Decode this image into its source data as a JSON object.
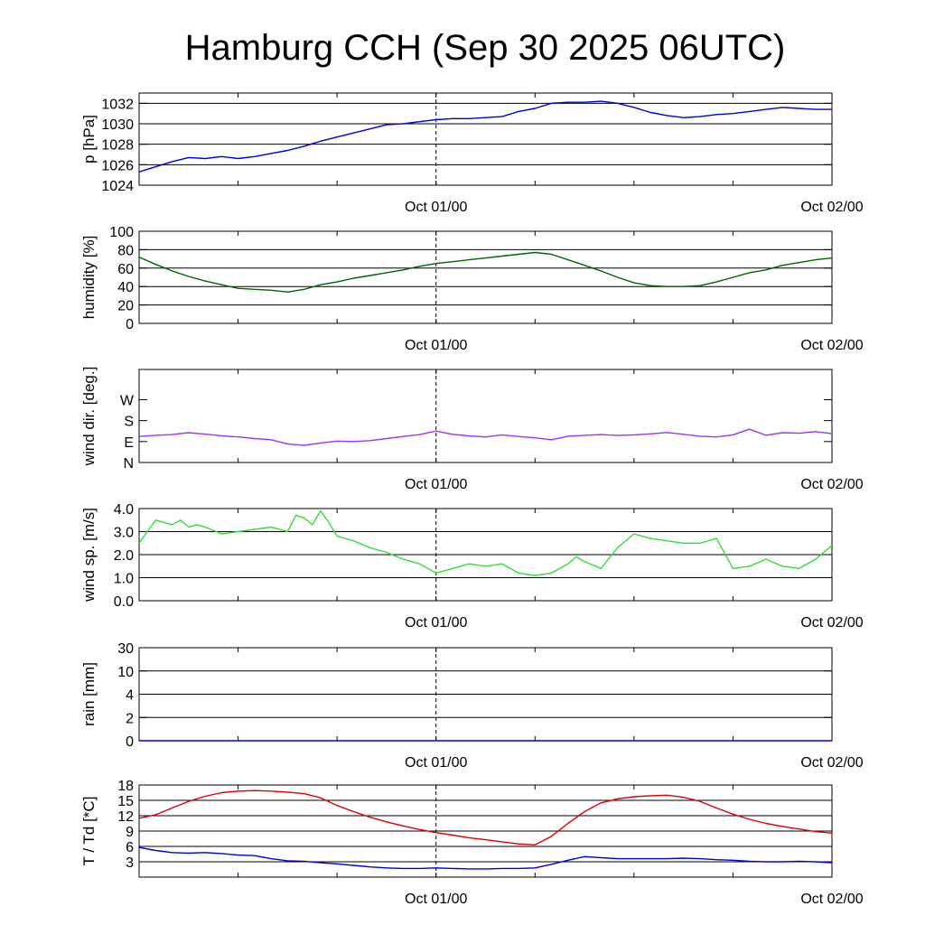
{
  "title": "Hamburg CCH (Sep 30 2025 06UTC)",
  "chart_data": [
    {
      "type": "line",
      "ylabel": "p [hPa]",
      "ylim": [
        1024,
        1033
      ],
      "yticks": [
        1024,
        1026,
        1028,
        1030,
        1032
      ],
      "ytick_labels": [
        "1024",
        "1026",
        "1028",
        "1030",
        "1032"
      ],
      "grid": true,
      "xlim": [
        0,
        42
      ],
      "xtick_labels": [
        {
          "x": 18,
          "label": "Oct 01/00"
        },
        {
          "x": 42,
          "label": "Oct 02/00"
        }
      ],
      "series": [
        {
          "color": "#0000dd",
          "x": [
            0,
            1,
            2,
            3,
            4,
            5,
            6,
            7,
            8,
            9,
            10,
            11,
            12,
            13,
            14,
            15,
            16,
            17,
            18,
            19,
            20,
            21,
            22,
            23,
            24,
            25,
            26,
            27,
            28,
            29,
            30,
            31,
            32,
            33,
            34,
            35,
            36,
            37,
            38,
            39,
            40,
            41,
            42
          ],
          "values": [
            1025.3,
            1025.8,
            1026.3,
            1026.7,
            1026.6,
            1026.8,
            1026.6,
            1026.8,
            1027.1,
            1027.4,
            1027.8,
            1028.3,
            1028.7,
            1029.1,
            1029.5,
            1029.9,
            1030.0,
            1030.2,
            1030.4,
            1030.5,
            1030.5,
            1030.6,
            1030.7,
            1031.2,
            1031.5,
            1032.0,
            1032.1,
            1032.1,
            1032.2,
            1032.0,
            1031.6,
            1031.1,
            1030.8,
            1030.6,
            1030.7,
            1030.9,
            1031.0,
            1031.2,
            1031.4,
            1031.6,
            1031.5,
            1031.4,
            1031.4
          ]
        }
      ]
    },
    {
      "type": "line",
      "ylabel": "humidity [%]",
      "ylim": [
        0,
        100
      ],
      "yticks": [
        0,
        20,
        40,
        60,
        80,
        100
      ],
      "ytick_labels": [
        "0",
        "20",
        "40",
        "60",
        "80",
        "100"
      ],
      "grid": true,
      "xlim": [
        0,
        42
      ],
      "xtick_labels": [
        {
          "x": 18,
          "label": "Oct 01/00"
        },
        {
          "x": 42,
          "label": "Oct 02/00"
        }
      ],
      "series": [
        {
          "color": "#006400",
          "x": [
            0,
            1,
            2,
            3,
            4,
            5,
            6,
            7,
            8,
            9,
            10,
            11,
            12,
            13,
            14,
            15,
            16,
            17,
            18,
            19,
            20,
            21,
            22,
            23,
            24,
            25,
            26,
            27,
            28,
            29,
            30,
            31,
            32,
            33,
            34,
            35,
            36,
            37,
            38,
            39,
            40,
            41,
            42
          ],
          "values": [
            72,
            64,
            57,
            51,
            46,
            42,
            38,
            37,
            36,
            34,
            37,
            42,
            45,
            49,
            52,
            55,
            58,
            62,
            65,
            67,
            69,
            71,
            73,
            75,
            77,
            75,
            69,
            63,
            57,
            50,
            44,
            41,
            40,
            40,
            41,
            45,
            50,
            55,
            58,
            63,
            66,
            69,
            71
          ]
        }
      ]
    },
    {
      "type": "line",
      "ylabel": "wind dir. [deg.]",
      "ylim": [
        0,
        400
      ],
      "yticks": [
        0,
        90,
        180,
        270
      ],
      "ytick_labels": [
        "N",
        "E",
        "S",
        "W"
      ],
      "grid": false,
      "xlim": [
        0,
        42
      ],
      "xtick_labels": [
        {
          "x": 18,
          "label": "Oct 01/00"
        },
        {
          "x": 42,
          "label": "Oct 02/00"
        }
      ],
      "series": [
        {
          "color": "#9933ff",
          "x": [
            0,
            1,
            2,
            3,
            4,
            5,
            6,
            7,
            8,
            9,
            10,
            11,
            12,
            13,
            14,
            15,
            16,
            17,
            18,
            19,
            20,
            21,
            22,
            23,
            24,
            25,
            26,
            27,
            28,
            29,
            30,
            31,
            32,
            33,
            34,
            35,
            36,
            37,
            38,
            39,
            40,
            41,
            42
          ],
          "values": [
            112,
            117,
            120,
            128,
            122,
            115,
            110,
            103,
            98,
            80,
            74,
            84,
            92,
            90,
            94,
            103,
            112,
            120,
            135,
            121,
            114,
            110,
            119,
            112,
            106,
            98,
            113,
            117,
            120,
            116,
            119,
            123,
            129,
            121,
            113,
            110,
            119,
            143,
            117,
            128,
            126,
            133,
            124
          ]
        }
      ]
    },
    {
      "type": "line",
      "ylabel": "wind sp. [m/s]",
      "ylim": [
        0,
        4
      ],
      "yticks": [
        0,
        1,
        2,
        3,
        4
      ],
      "ytick_labels": [
        "0.0",
        "1.0",
        "2.0",
        "3.0",
        "4.0"
      ],
      "grid": true,
      "xlim": [
        0,
        42
      ],
      "xtick_labels": [
        {
          "x": 18,
          "label": "Oct 01/00"
        },
        {
          "x": 42,
          "label": "Oct 02/00"
        }
      ],
      "series": [
        {
          "color": "#33dd33",
          "x": [
            0,
            0.5,
            1,
            1.5,
            2,
            2.5,
            3,
            3.5,
            4,
            5,
            6,
            7,
            8,
            9,
            9.5,
            10,
            10.5,
            11,
            11.5,
            12,
            13,
            14,
            15,
            16,
            17,
            18,
            19,
            20,
            21,
            22,
            23,
            24,
            25,
            26,
            26.5,
            27,
            28,
            29,
            30,
            31,
            32,
            33,
            34,
            35,
            36,
            37,
            38,
            39,
            40,
            41,
            42
          ],
          "values": [
            2.5,
            3.0,
            3.5,
            3.4,
            3.3,
            3.5,
            3.2,
            3.3,
            3.2,
            2.9,
            3.0,
            3.1,
            3.2,
            3.0,
            3.7,
            3.6,
            3.3,
            3.9,
            3.4,
            2.8,
            2.6,
            2.3,
            2.1,
            1.8,
            1.6,
            1.2,
            1.4,
            1.6,
            1.5,
            1.6,
            1.2,
            1.1,
            1.2,
            1.6,
            1.9,
            1.7,
            1.4,
            2.3,
            2.9,
            2.7,
            2.6,
            2.5,
            2.5,
            2.7,
            1.4,
            1.5,
            1.8,
            1.5,
            1.4,
            1.8,
            2.4
          ]
        }
      ]
    },
    {
      "type": "line",
      "ylabel": "rain [mm]",
      "ylim": [
        0,
        4
      ],
      "yticks": [
        0,
        1,
        2,
        3,
        4
      ],
      "ytick_labels": [
        "0",
        "2",
        "4",
        "10",
        "30"
      ],
      "grid": true,
      "xlim": [
        0,
        42
      ],
      "xtick_labels": [
        {
          "x": 18,
          "label": "Oct 01/00"
        },
        {
          "x": 42,
          "label": "Oct 02/00"
        }
      ],
      "series": [
        {
          "color": "#0000dd",
          "x": [
            0,
            42
          ],
          "values": [
            0,
            0
          ]
        }
      ]
    },
    {
      "type": "line",
      "ylabel": "T / Td [*C]",
      "ylim": [
        0,
        18
      ],
      "yticks": [
        3,
        6,
        9,
        12,
        15,
        18
      ],
      "ytick_labels": [
        "3",
        "6",
        "9",
        "12",
        "15",
        "18"
      ],
      "grid": true,
      "xlim": [
        0,
        42
      ],
      "xtick_labels": [
        {
          "x": 18,
          "label": "Oct 01/00"
        },
        {
          "x": 42,
          "label": "Oct 02/00"
        }
      ],
      "series": [
        {
          "color": "#dd0000",
          "x": [
            0,
            1,
            2,
            3,
            4,
            5,
            6,
            7,
            8,
            9,
            10,
            11,
            12,
            13,
            14,
            15,
            16,
            17,
            18,
            19,
            20,
            21,
            22,
            23,
            24,
            25,
            26,
            27,
            28,
            29,
            30,
            31,
            32,
            33,
            34,
            35,
            36,
            37,
            38,
            39,
            40,
            41,
            42
          ],
          "values": [
            11.5,
            12.2,
            13.5,
            14.8,
            15.8,
            16.5,
            16.8,
            16.9,
            16.8,
            16.6,
            16.3,
            15.5,
            14.0,
            12.8,
            11.7,
            10.8,
            10.0,
            9.3,
            8.7,
            8.2,
            7.7,
            7.3,
            6.9,
            6.5,
            6.3,
            8.0,
            10.5,
            12.8,
            14.5,
            15.3,
            15.7,
            15.9,
            16.0,
            15.6,
            14.8,
            13.5,
            12.3,
            11.3,
            10.5,
            9.9,
            9.4,
            8.9,
            8.6
          ]
        },
        {
          "color": "#0000dd",
          "x": [
            0,
            1,
            2,
            3,
            4,
            5,
            6,
            7,
            8,
            9,
            10,
            11,
            12,
            13,
            14,
            15,
            16,
            17,
            18,
            19,
            20,
            21,
            22,
            23,
            24,
            25,
            26,
            27,
            28,
            29,
            30,
            31,
            32,
            33,
            34,
            35,
            36,
            37,
            38,
            39,
            40,
            41,
            42
          ],
          "values": [
            5.8,
            5.2,
            4.8,
            4.7,
            4.8,
            4.6,
            4.3,
            4.2,
            3.6,
            3.2,
            3.1,
            2.8,
            2.6,
            2.3,
            2.0,
            1.8,
            1.7,
            1.7,
            1.8,
            1.7,
            1.6,
            1.6,
            1.7,
            1.7,
            1.8,
            2.5,
            3.3,
            4.0,
            3.8,
            3.6,
            3.6,
            3.6,
            3.6,
            3.7,
            3.6,
            3.4,
            3.3,
            3.1,
            3.0,
            3.0,
            3.1,
            3.0,
            2.8
          ]
        }
      ]
    }
  ]
}
